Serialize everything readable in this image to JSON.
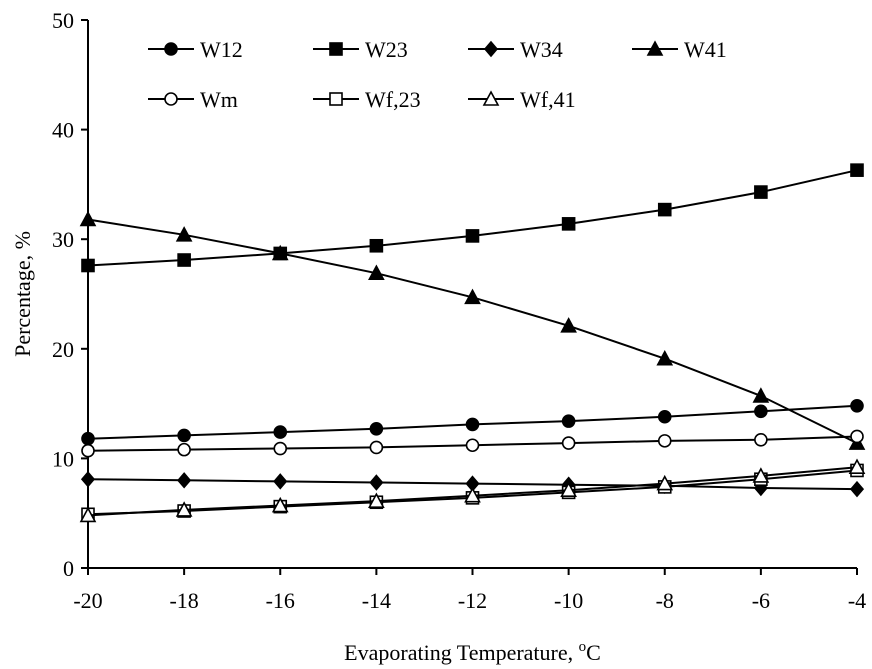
{
  "chart_data": {
    "type": "line",
    "title": "",
    "xlabel": "Evaporating Temperature, ",
    "xlabel_unit_sup": "o",
    "xlabel_unit": "C",
    "ylabel": "Percentage, %",
    "xlim": [
      -20,
      -4
    ],
    "ylim": [
      0,
      50
    ],
    "xticks": [
      -20,
      -18,
      -16,
      -14,
      -12,
      -10,
      -8,
      -6,
      -4
    ],
    "xtick_labels": [
      "-20",
      "-18",
      "-16",
      "-14",
      "-12",
      "-10",
      "-8",
      "-6",
      "-4"
    ],
    "yticks": [
      0,
      10,
      20,
      30,
      40,
      50
    ],
    "ytick_labels": [
      "0",
      "10",
      "20",
      "30",
      "40",
      "50"
    ],
    "grid": false,
    "legend_placement": "top",
    "x": [
      -20,
      -18,
      -16,
      -14,
      -12,
      -10,
      -8,
      -6,
      -4
    ],
    "series": [
      {
        "name": "W12",
        "marker": "circle-filled",
        "values": [
          11.8,
          12.1,
          12.4,
          12.7,
          13.1,
          13.4,
          13.8,
          14.3,
          14.8
        ]
      },
      {
        "name": "W23",
        "marker": "square-filled",
        "values": [
          27.6,
          28.1,
          28.7,
          29.4,
          30.3,
          31.4,
          32.7,
          34.3,
          36.3
        ]
      },
      {
        "name": "W34",
        "marker": "diamond-filled",
        "values": [
          8.1,
          8.0,
          7.9,
          7.8,
          7.7,
          7.6,
          7.5,
          7.3,
          7.2
        ]
      },
      {
        "name": "W41",
        "marker": "triangle-filled",
        "values": [
          31.8,
          30.4,
          28.7,
          26.9,
          24.7,
          22.1,
          19.1,
          15.7,
          11.4
        ]
      },
      {
        "name": "Wm",
        "marker": "circle-open",
        "values": [
          10.7,
          10.8,
          10.9,
          11.0,
          11.2,
          11.4,
          11.6,
          11.7,
          12.0
        ]
      },
      {
        "name": "Wf,23",
        "marker": "square-open",
        "values": [
          4.9,
          5.2,
          5.6,
          6.0,
          6.4,
          6.9,
          7.4,
          8.1,
          8.9
        ]
      },
      {
        "name": "Wf,41",
        "marker": "triangle-open",
        "values": [
          4.8,
          5.3,
          5.7,
          6.1,
          6.6,
          7.1,
          7.7,
          8.4,
          9.2
        ]
      }
    ]
  }
}
